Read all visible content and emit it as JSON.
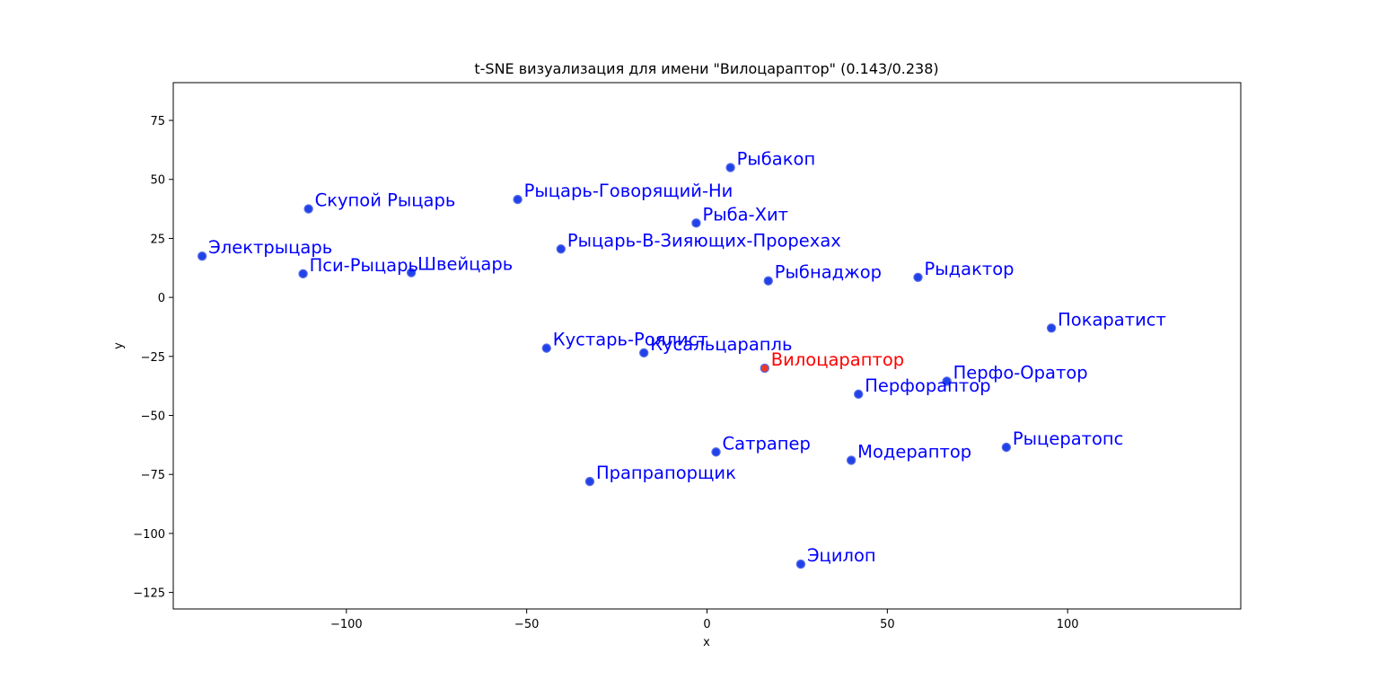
{
  "chart_data": {
    "type": "scatter",
    "title": "t-SNE визуализация для имени \"Вилоцараптор\" (0.143/0.238)",
    "xlabel": "x",
    "ylabel": "y",
    "xlim": [
      -148,
      148
    ],
    "ylim": [
      -132,
      91
    ],
    "xticks": [
      -100,
      -50,
      0,
      50,
      100
    ],
    "xtick_labels": [
      "−100",
      "−50",
      "0",
      "50",
      "100"
    ],
    "yticks": [
      -125,
      -100,
      -75,
      -50,
      -25,
      0,
      25,
      50,
      75
    ],
    "ytick_labels": [
      "−125",
      "−100",
      "−75",
      "−50",
      "−25",
      "0",
      "25",
      "50",
      "75"
    ],
    "grid": false,
    "colors": {
      "point_fill": "#2142e8",
      "point_edge": "#5a6ee8",
      "label": "#0000ff",
      "highlight_fill": "#e8392f",
      "highlight_label": "#ff0000"
    },
    "points": [
      {
        "label": "Рыбакоп",
        "x": 6.5,
        "y": 55.0,
        "highlight": false
      },
      {
        "label": "Скупой Рыцарь",
        "x": -110.5,
        "y": 37.5,
        "highlight": false
      },
      {
        "label": "Рыцарь-Говорящий-Ни",
        "x": -52.5,
        "y": 41.5,
        "highlight": false
      },
      {
        "label": "Рыба-Хит",
        "x": -3.0,
        "y": 31.5,
        "highlight": false
      },
      {
        "label": "Электрыцарь",
        "x": -140.0,
        "y": 17.5,
        "highlight": false
      },
      {
        "label": "Рыцарь-В-Зияющих-Прорехах",
        "x": -40.5,
        "y": 20.5,
        "highlight": false
      },
      {
        "label": "Пси-Рыцарь",
        "x": -112.0,
        "y": 10.0,
        "highlight": false
      },
      {
        "label": "Швейцарь",
        "x": -82.0,
        "y": 10.5,
        "highlight": false
      },
      {
        "label": "Рыбнаджор",
        "x": 17.0,
        "y": 7.0,
        "highlight": false
      },
      {
        "label": "Рыдактор",
        "x": 58.5,
        "y": 8.5,
        "highlight": false
      },
      {
        "label": "Покаратист",
        "x": 95.5,
        "y": -13.0,
        "highlight": false
      },
      {
        "label": "Кустарь-Роялист",
        "x": -44.5,
        "y": -21.5,
        "highlight": false
      },
      {
        "label": "Кусальцарапль",
        "x": -17.5,
        "y": -23.5,
        "highlight": false
      },
      {
        "label": "Вилоцараптор",
        "x": 16.0,
        "y": -30.0,
        "highlight": true
      },
      {
        "label": "Перфо-Оратор",
        "x": 66.5,
        "y": -35.5,
        "highlight": false
      },
      {
        "label": "Перфораптор",
        "x": 42.0,
        "y": -41.0,
        "highlight": false
      },
      {
        "label": "Сатрапер",
        "x": 2.5,
        "y": -65.5,
        "highlight": false
      },
      {
        "label": "Модераптор",
        "x": 40.0,
        "y": -69.0,
        "highlight": false
      },
      {
        "label": "Рыцератопс",
        "x": 83.0,
        "y": -63.5,
        "highlight": false
      },
      {
        "label": "Прапрапорщик",
        "x": -32.5,
        "y": -78.0,
        "highlight": false
      },
      {
        "label": "Эцилоп",
        "x": 26.0,
        "y": -113.0,
        "highlight": false
      }
    ]
  }
}
